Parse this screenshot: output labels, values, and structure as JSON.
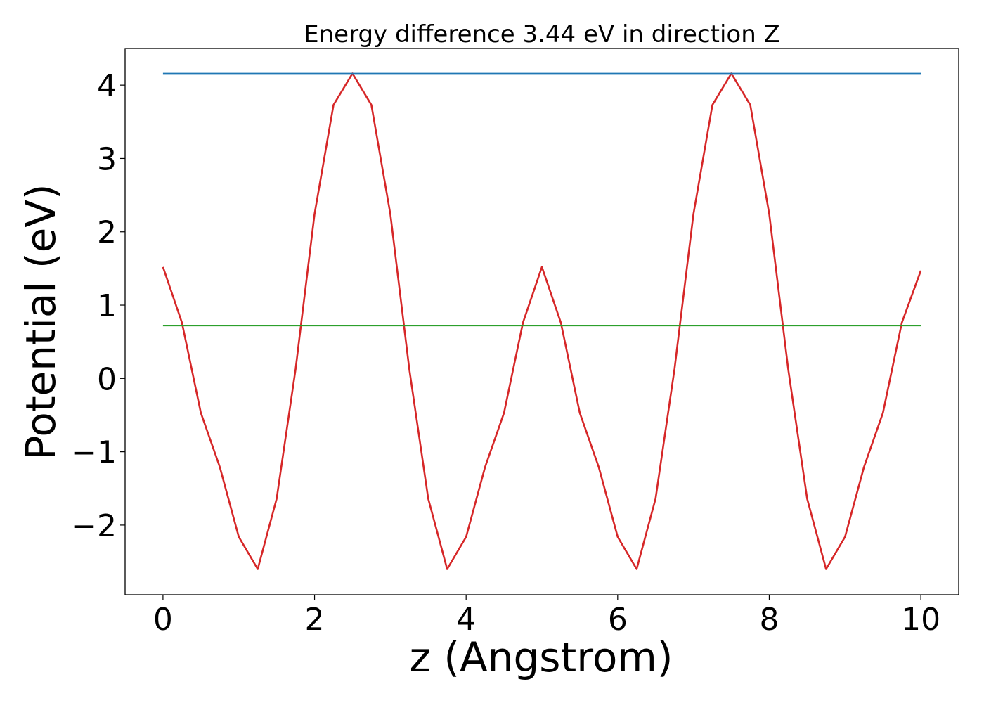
{
  "chart_data": {
    "type": "line",
    "title": "Energy difference 3.44 eV in direction Z",
    "xlabel": "z (Angstrom)",
    "ylabel": "Potential (eV)",
    "xlim": [
      -0.5,
      10.5
    ],
    "ylim": [
      -2.95,
      4.5
    ],
    "x_ticks": [
      0,
      2,
      4,
      6,
      8,
      10
    ],
    "x_tick_labels": [
      "0",
      "2",
      "4",
      "6",
      "8",
      "10"
    ],
    "y_ticks": [
      -2,
      -1,
      0,
      1,
      2,
      3,
      4
    ],
    "y_tick_labels": [
      "−2",
      "−1",
      "0",
      "1",
      "2",
      "3",
      "4"
    ],
    "grid": false,
    "legend": "none",
    "series": [
      {
        "color": "#d62728",
        "x": [
          0,
          0.25,
          0.5,
          0.75,
          1.0,
          1.25,
          1.5,
          1.75,
          2.0,
          2.25,
          2.5,
          2.75,
          3.0,
          3.25,
          3.5,
          3.75,
          4.0,
          4.25,
          4.5,
          4.75,
          5.0,
          5.25,
          5.5,
          5.75,
          6.0,
          6.25,
          6.5,
          6.75,
          7.0,
          7.25,
          7.5,
          7.75,
          8.0,
          8.25,
          8.5,
          8.75,
          9.0,
          9.25,
          9.5,
          9.75,
          10.0
        ],
        "values": [
          1.52,
          0.76,
          -0.47,
          -1.21,
          -2.16,
          -2.6,
          -1.64,
          0.13,
          2.24,
          3.73,
          4.16,
          3.73,
          2.24,
          0.13,
          -1.64,
          -2.6,
          -2.16,
          -1.21,
          -0.47,
          0.76,
          1.52,
          0.76,
          -0.47,
          -1.21,
          -2.16,
          -2.6,
          -1.64,
          0.13,
          2.24,
          3.73,
          4.16,
          3.73,
          2.24,
          0.13,
          -1.64,
          -2.6,
          -2.16,
          -1.21,
          -0.47,
          0.76,
          1.47
        ]
      },
      {
        "color": "#1f77b4",
        "x": [
          0,
          10
        ],
        "values": [
          4.16,
          4.16
        ]
      },
      {
        "color": "#2ca02c",
        "x": [
          0,
          10
        ],
        "values": [
          0.72,
          0.72
        ]
      }
    ]
  }
}
